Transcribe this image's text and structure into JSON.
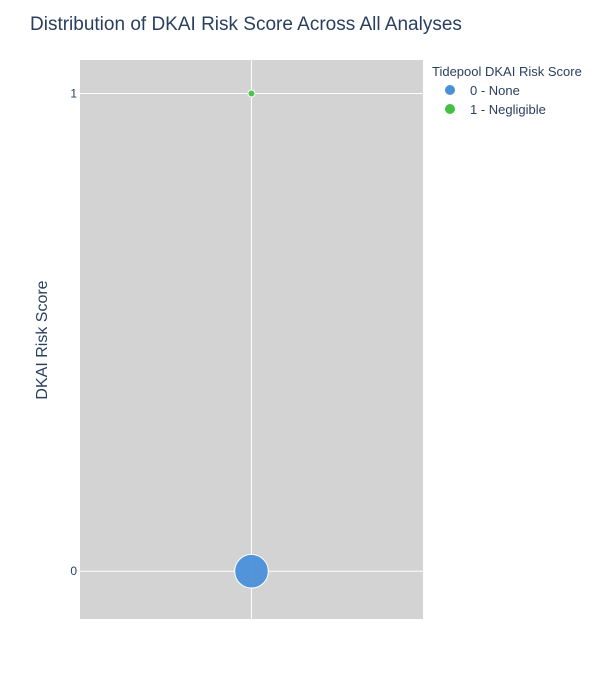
{
  "chart_data": {
    "type": "scatter",
    "title": "Distribution of DKAI Risk Score Across All Analyses",
    "xlabel": "",
    "ylabel": "DKAI Risk Score",
    "ylim": [
      -0.1,
      1.07
    ],
    "yticks": [
      {
        "value": 0,
        "label": "0"
      },
      {
        "value": 1,
        "label": "1"
      }
    ],
    "grid": true,
    "legend_title": "Tidepool DKAI Risk Score",
    "legend_position": "top-right",
    "series": [
      {
        "name": "0 - None",
        "color": "#4a90d9",
        "points": [
          {
            "x": 0,
            "y": 0,
            "size": 2.4
          }
        ]
      },
      {
        "name": "1 - Negligible",
        "color": "#44c044",
        "points": [
          {
            "x": 0,
            "y": 1,
            "size": 0.5
          }
        ]
      }
    ]
  }
}
